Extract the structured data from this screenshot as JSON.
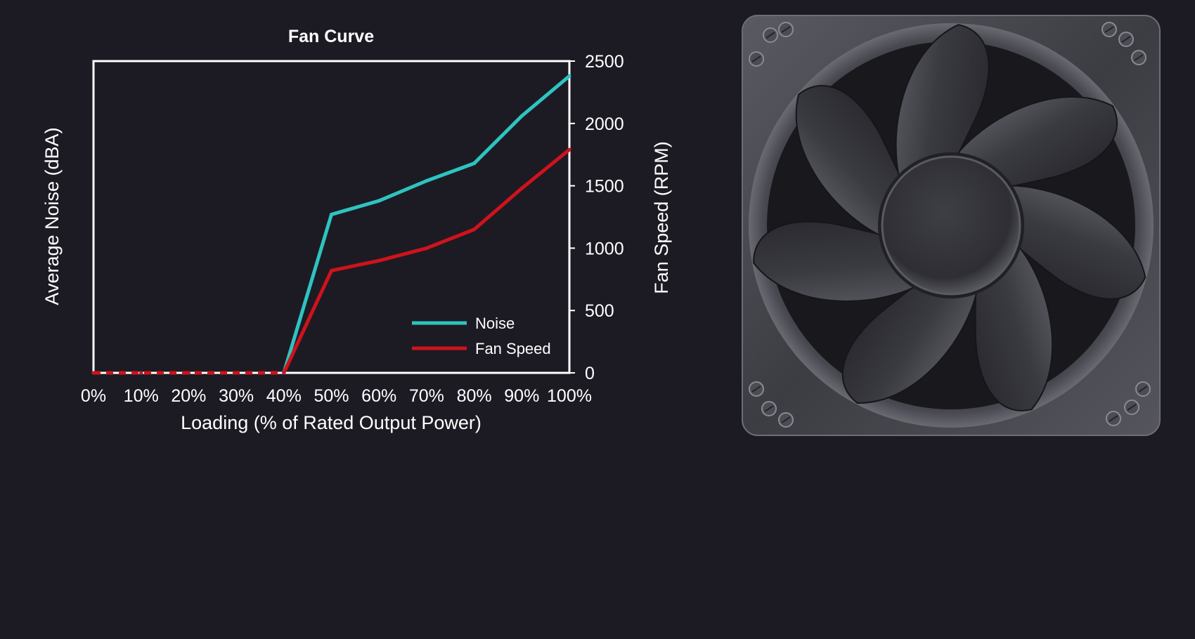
{
  "chart_data": {
    "type": "line",
    "title": "Fan Curve",
    "xlabel": "Loading (% of Rated Output Power)",
    "ylabel_left": "Average Noise (dBA)",
    "ylabel_right": "Fan Speed (RPM)",
    "categories": [
      "0%",
      "10%",
      "20%",
      "30%",
      "40%",
      "50%",
      "60%",
      "70%",
      "80%",
      "90%",
      "100%"
    ],
    "x": [
      0,
      10,
      20,
      30,
      40,
      50,
      60,
      70,
      80,
      90,
      100
    ],
    "xlim": [
      0,
      100
    ],
    "y_right_lim": [
      0,
      2500
    ],
    "y_right_ticks": [
      "0",
      "500",
      "1000",
      "1500",
      "2000",
      "2500"
    ],
    "y_right_tick_values": [
      0,
      500,
      1000,
      1500,
      2000,
      2500
    ],
    "legend_position": "bottom-right",
    "grid": false,
    "series": [
      {
        "name": "Noise",
        "color": "#2ec4c0",
        "axis": "right",
        "values": [
          0,
          0,
          0,
          0,
          0,
          1270,
          1380,
          1540,
          1680,
          2060,
          2380
        ],
        "zero_region_dashed": true
      },
      {
        "name": "Fan Speed",
        "color": "#d0121b",
        "axis": "right",
        "values": [
          0,
          0,
          0,
          0,
          0,
          820,
          900,
          1000,
          1150,
          1480,
          1790
        ],
        "zero_region_dashed": true
      }
    ]
  },
  "illustration": {
    "name": "case-fan",
    "icon": "fan-icon"
  }
}
